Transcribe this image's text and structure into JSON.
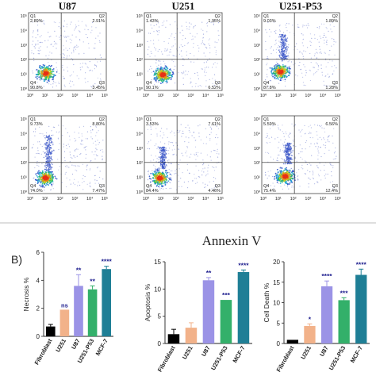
{
  "flow": {
    "column_titles": [
      "U87",
      "U251",
      "U251-P53"
    ],
    "axis_ticks": [
      "10⁰",
      "10¹",
      "10²",
      "10³",
      "10⁴",
      "10⁵"
    ],
    "xlabel": "Annexin V",
    "panels": [
      {
        "q1": "Q1",
        "q1_val": "2.89%",
        "q2": "Q2",
        "q2_val": "2.91%",
        "q3": "Q3",
        "q3_val": "3.45%",
        "q4": "Q4",
        "q4_val": "90.8%"
      },
      {
        "q1": "Q1",
        "q1_val": "1.43%",
        "q2": "Q2",
        "q2_val": "1.95%",
        "q3": "Q3",
        "q3_val": "6.52%",
        "q4": "Q4",
        "q4_val": "90.1%"
      },
      {
        "q1": "Q1",
        "q1_val": "9.03%",
        "q2": "Q2",
        "q2_val": "1.89%",
        "q3": "Q3",
        "q3_val": "1.28%",
        "q4": "Q4",
        "q4_val": "87.8%"
      },
      {
        "q1": "Q1",
        "q1_val": "9.73%",
        "q2": "Q2",
        "q2_val": "8.80%",
        "q3": "Q3",
        "q3_val": "7.47%",
        "q4": "Q4",
        "q4_val": "74.0%"
      },
      {
        "q1": "Q1",
        "q1_val": "3.53%",
        "q2": "Q2",
        "q2_val": "7.61%",
        "q3": "Q3",
        "q3_val": "4.46%",
        "q4": "Q4",
        "q4_val": "84.4%"
      },
      {
        "q1": "Q1",
        "q1_val": "5.59%",
        "q2": "Q2",
        "q2_val": "6.56%",
        "q3": "Q3",
        "q3_val": "12.4%",
        "q4": "Q4",
        "q4_val": "75.4%"
      }
    ]
  },
  "panel_b_label": "B)",
  "chart_data": [
    {
      "type": "bar",
      "ylabel": "Necrosis %",
      "categories": [
        "Fibroblast",
        "U251",
        "U87",
        "U251-P53",
        "MCF-7"
      ],
      "values": [
        0.7,
        1.9,
        3.6,
        3.35,
        4.8
      ],
      "errors": [
        0.15,
        0.0,
        0.8,
        0.25,
        0.2
      ],
      "significance": [
        "",
        "ns",
        "**",
        "**",
        "****"
      ],
      "ylim": [
        0,
        6
      ],
      "yticks": [
        0,
        2,
        4,
        6
      ]
    },
    {
      "type": "bar",
      "ylabel": "Apoptosis %",
      "categories": [
        "Fibroblast",
        "U251",
        "U87",
        "U251-P53",
        "MCF-7"
      ],
      "values": [
        1.7,
        2.9,
        11.6,
        8.0,
        13.1
      ],
      "errors": [
        0.9,
        0.9,
        0.5,
        0.0,
        0.4
      ],
      "significance": [
        "",
        "",
        "**",
        "***",
        "****"
      ],
      "ylim": [
        0,
        15
      ],
      "yticks": [
        0,
        5,
        10,
        15
      ]
    },
    {
      "type": "bar",
      "ylabel": "Cell Death %",
      "categories": [
        "Fibroblast",
        "U251",
        "U87",
        "U251-P53",
        "MCF-7"
      ],
      "values": [
        0.9,
        4.3,
        14.0,
        10.6,
        16.8
      ],
      "errors": [
        0.0,
        0.5,
        1.3,
        0.6,
        1.4
      ],
      "significance": [
        "",
        "*",
        "****",
        "***",
        "****"
      ],
      "ylim": [
        0,
        20
      ],
      "yticks": [
        0,
        5,
        10,
        15,
        20
      ]
    }
  ],
  "bar_colors": [
    "#000000",
    "#f2b28a",
    "#9b93e6",
    "#33b06a",
    "#1f7f96"
  ],
  "significance_color": "#1a1a8c"
}
